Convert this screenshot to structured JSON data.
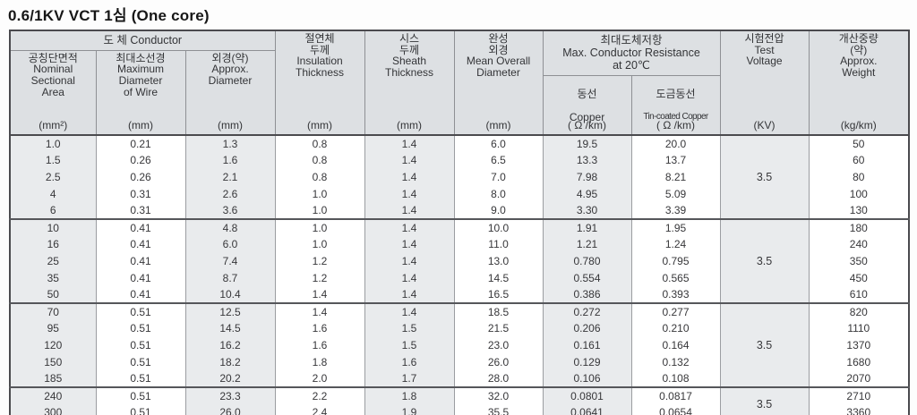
{
  "page_title": "0.6/1KV VCT 1심 (One core)",
  "colors": {
    "header_bg": "#dde0e3",
    "shaded_column_bg": "#e9ebed",
    "outer_border": "#4a4a4e",
    "inner_border": "#9b9da1",
    "text": "#37373a"
  },
  "table": {
    "groups": {
      "conductor": "도 체 Conductor",
      "resistance": "최대도체저항\nMax. Conductor Resistance\nat 20℃"
    },
    "columns": [
      {
        "id": "area",
        "label": "공칭단면적\nNominal\nSectional\nArea",
        "unit": "(mm²)"
      },
      {
        "id": "max-wire-diameter",
        "label": "최대소선경\nMaximum\nDiameter\nof Wire",
        "unit": "(mm)"
      },
      {
        "id": "approx-diameter",
        "label": "외경(약)\nApprox.\nDiameter",
        "unit": "(mm)"
      },
      {
        "id": "insulation-thickness",
        "label": "절연체\n두께\nInsulation\nThickness",
        "unit": "(mm)"
      },
      {
        "id": "sheath-thickness",
        "label": "시스\n두께\nSheath\nThickness",
        "unit": "(mm)"
      },
      {
        "id": "mean-overall-diameter",
        "label": "완성\n외경\nMean Overall\nDiameter",
        "unit": "(mm)"
      },
      {
        "id": "copper-resistance",
        "kr": "동선",
        "en": "Copper",
        "unit": "( Ω /km)"
      },
      {
        "id": "tin-copper-resistance",
        "kr": "도금동선",
        "en": "Tin-coated Copper",
        "unit": "( Ω /km)"
      },
      {
        "id": "test-voltage",
        "label": "시험전압\nTest\nVoltage",
        "unit": "(KV)"
      },
      {
        "id": "weight",
        "label": "개산중량\n(약)\nApprox.\nWeight",
        "unit": "(kg/km)"
      }
    ],
    "column_ids": [
      "area",
      "max-wire-diameter",
      "approx-diameter",
      "insulation-thickness",
      "sheath-thickness",
      "mean-overall-diameter",
      "copper-resistance",
      "tin-copper-resistance",
      "weight"
    ],
    "row_groups": [
      {
        "test_voltage": "3.5",
        "rows": [
          [
            "1.0",
            "0.21",
            "1.3",
            "0.8",
            "1.4",
            "6.0",
            "19.5",
            "20.0",
            "50"
          ],
          [
            "1.5",
            "0.26",
            "1.6",
            "0.8",
            "1.4",
            "6.5",
            "13.3",
            "13.7",
            "60"
          ],
          [
            "2.5",
            "0.26",
            "2.1",
            "0.8",
            "1.4",
            "7.0",
            "7.98",
            "8.21",
            "80"
          ],
          [
            "4",
            "0.31",
            "2.6",
            "1.0",
            "1.4",
            "8.0",
            "4.95",
            "5.09",
            "100"
          ],
          [
            "6",
            "0.31",
            "3.6",
            "1.0",
            "1.4",
            "9.0",
            "3.30",
            "3.39",
            "130"
          ]
        ]
      },
      {
        "test_voltage": "3.5",
        "rows": [
          [
            "10",
            "0.41",
            "4.8",
            "1.0",
            "1.4",
            "10.0",
            "1.91",
            "1.95",
            "180"
          ],
          [
            "16",
            "0.41",
            "6.0",
            "1.0",
            "1.4",
            "11.0",
            "1.21",
            "1.24",
            "240"
          ],
          [
            "25",
            "0.41",
            "7.4",
            "1.2",
            "1.4",
            "13.0",
            "0.780",
            "0.795",
            "350"
          ],
          [
            "35",
            "0.41",
            "8.7",
            "1.2",
            "1.4",
            "14.5",
            "0.554",
            "0.565",
            "450"
          ],
          [
            "50",
            "0.41",
            "10.4",
            "1.4",
            "1.4",
            "16.5",
            "0.386",
            "0.393",
            "610"
          ]
        ]
      },
      {
        "test_voltage": "3.5",
        "rows": [
          [
            "70",
            "0.51",
            "12.5",
            "1.4",
            "1.4",
            "18.5",
            "0.272",
            "0.277",
            "820"
          ],
          [
            "95",
            "0.51",
            "14.5",
            "1.6",
            "1.5",
            "21.5",
            "0.206",
            "0.210",
            "1110"
          ],
          [
            "120",
            "0.51",
            "16.2",
            "1.6",
            "1.5",
            "23.0",
            "0.161",
            "0.164",
            "1370"
          ],
          [
            "150",
            "0.51",
            "18.2",
            "1.8",
            "1.6",
            "26.0",
            "0.129",
            "0.132",
            "1680"
          ],
          [
            "185",
            "0.51",
            "20.2",
            "2.0",
            "1.7",
            "28.0",
            "0.106",
            "0.108",
            "2070"
          ]
        ]
      },
      {
        "test_voltage": "3.5",
        "rows": [
          [
            "240",
            "0.51",
            "23.3",
            "2.2",
            "1.8",
            "32.0",
            "0.0801",
            "0.0817",
            "2710"
          ],
          [
            "300",
            "0.51",
            "26.0",
            "2.4",
            "1.9",
            "35.5",
            "0.0641",
            "0.0654",
            "3360"
          ]
        ]
      }
    ]
  }
}
